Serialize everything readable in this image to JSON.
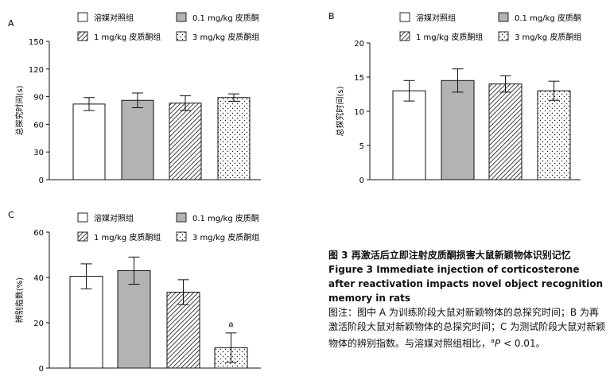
{
  "legend_entries": {
    "vehicle": "溶媒对照组",
    "low": "0.1 mg/kg 皮质酮",
    "mid": "1 mg/kg 皮质酮组",
    "high": "3 mg/kg 皮质酮组"
  },
  "colors": {
    "low_fill": "#b3b3b3",
    "line": "#111111",
    "bar_fill": "#ffffff"
  },
  "chart_data": [
    {
      "panel": "A",
      "type": "bar",
      "categories": [
        "溶媒对照组",
        "0.1 mg/kg 皮质酮",
        "1 mg/kg 皮质酮组",
        "3 mg/kg 皮质酮组"
      ],
      "values": [
        82,
        86,
        83,
        89
      ],
      "errors": [
        7,
        8,
        8,
        4
      ],
      "ylabel": "总探究时间(s)",
      "ylim": [
        0,
        150
      ],
      "yticks": [
        "0",
        "30",
        "60",
        "90",
        "120",
        "150"
      ],
      "annotations": [
        "",
        "",
        "",
        ""
      ],
      "legend": "top"
    },
    {
      "panel": "B",
      "type": "bar",
      "categories": [
        "溶媒对照组",
        "0.1 mg/kg 皮质酮",
        "1 mg/kg 皮质酮组",
        "3 mg/kg 皮质酮组"
      ],
      "values": [
        13.0,
        14.5,
        14.0,
        13.0
      ],
      "errors": [
        1.5,
        1.7,
        1.2,
        1.4
      ],
      "ylabel": "总探究时间(s)",
      "ylim": [
        0,
        20
      ],
      "yticks": [
        "0",
        "5",
        "10",
        "15",
        "20"
      ],
      "annotations": [
        "",
        "",
        "",
        ""
      ],
      "legend": "top"
    },
    {
      "panel": "C",
      "type": "bar",
      "categories": [
        "溶媒对照组",
        "0.1 mg/kg 皮质酮",
        "1 mg/kg 皮质酮组",
        "3 mg/kg 皮质酮组"
      ],
      "values": [
        40.5,
        43,
        33.5,
        9
      ],
      "errors": [
        5.5,
        6,
        5.5,
        6.5
      ],
      "ylabel": "辨别指数(%)",
      "ylim": [
        0,
        60
      ],
      "yticks": [
        "0",
        "20",
        "40",
        "60"
      ],
      "annotations": [
        "",
        "",
        "",
        "a"
      ],
      "legend": "top"
    }
  ],
  "caption": {
    "cn_title": "图 3   再激活后立即注射皮质酮损害大鼠新颖物体识别记忆",
    "en_title": "Figure 3   Immediate injection of corticosterone after reactivation impacts novel object recognition memory in rats",
    "note_main": "图注：图中 A 为训练阶段大鼠对新颖物体的总探究时间；B 为再激活阶段大鼠对新颖物体的总探究时间；C 为测试阶段大鼠对新颖物体的辨别指数。与溶媒对照组相比，",
    "note_sup": "a",
    "note_p": "P",
    "note_tail": " < 0.01。"
  }
}
